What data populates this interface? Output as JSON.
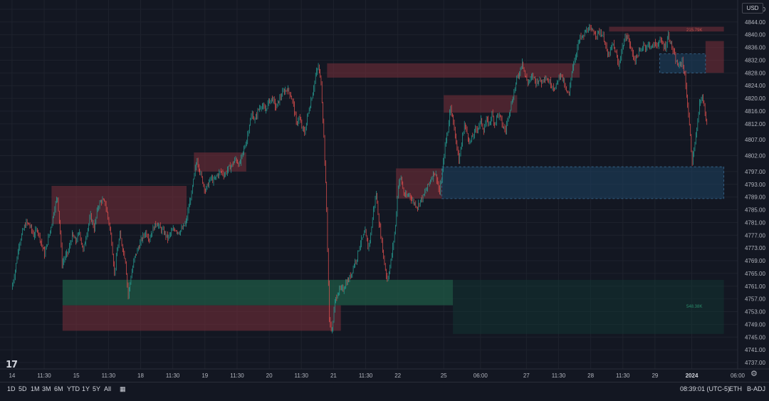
{
  "currency": "USD",
  "chart_data": {
    "type": "candlestick",
    "y_ticks": [
      4848.0,
      4844.0,
      4840.0,
      4836.0,
      4832.0,
      4828.0,
      4824.0,
      4820.0,
      4816.0,
      4812.0,
      4807.0,
      4802.0,
      4797.0,
      4793.0,
      4789.0,
      4785.0,
      4781.0,
      4777.0,
      4773.0,
      4769.0,
      4765.0,
      4761.0,
      4757.0,
      4753.0,
      4749.0,
      4745.0,
      4741.0,
      4737.0
    ],
    "y_tick_labels": [
      "4848.00",
      "4844.00",
      "4840.00",
      "4836.00",
      "4832.00",
      "4828.00",
      "4824.00",
      "4820.00",
      "4816.00",
      "4812.00",
      "4807.00",
      "4802.00",
      "4797.00",
      "4793.00",
      "4789.00",
      "4785.00",
      "4781.00",
      "4777.00",
      "4773.00",
      "4769.00",
      "4765.00",
      "4761.00",
      "4757.00",
      "4753.00",
      "4749.00",
      "4745.00",
      "4741.00",
      "4737.00"
    ],
    "ylim": [
      4735,
      4850
    ],
    "x_tick_labels": [
      "14",
      "11:30",
      "15",
      "11:30",
      "18",
      "11:30",
      "19",
      "11:30",
      "20",
      "11:30",
      "21",
      "11:30",
      "22",
      "25",
      "06:00",
      "27",
      "11:30",
      "28",
      "11:30",
      "29",
      "2024",
      "06:00"
    ],
    "x_tick_index": [
      0,
      35,
      70,
      105,
      140,
      175,
      210,
      245,
      280,
      315,
      350,
      385,
      420,
      470,
      510,
      560,
      595,
      630,
      665,
      700,
      740,
      790
    ],
    "x_index_range": [
      -10,
      790
    ],
    "bold_x_tick": "2024",
    "volume_labels": [
      {
        "text": "215.79K",
        "price": 4841.5,
        "color": "#c0544f"
      },
      {
        "text": "548.38K",
        "price": 4754.7,
        "color": "#2a8c6a"
      }
    ],
    "zones": [
      {
        "kind": "supply",
        "x0": 43,
        "x1": 190,
        "y0": 4780.5,
        "y1": 4792.5
      },
      {
        "kind": "supply",
        "x0": 198,
        "x1": 255,
        "y0": 4797.0,
        "y1": 4803.0
      },
      {
        "kind": "supply",
        "x0": 343,
        "x1": 618,
        "y0": 4826.5,
        "y1": 4831.0
      },
      {
        "kind": "supply",
        "x0": 470,
        "x1": 550,
        "y0": 4815.5,
        "y1": 4821.0
      },
      {
        "kind": "supply",
        "x0": 418,
        "x1": 468,
        "y0": 4788.5,
        "y1": 4798.0
      },
      {
        "kind": "supply",
        "x0": 650,
        "x1": 775,
        "y0": 4841.0,
        "y1": 4842.5
      },
      {
        "kind": "supply",
        "x0": 755,
        "x1": 775,
        "y0": 4828.0,
        "y1": 4838.0
      },
      {
        "kind": "supply",
        "x0": 55,
        "x1": 358,
        "y0": 4747.0,
        "y1": 4755.0
      },
      {
        "kind": "demand",
        "x0": 55,
        "x1": 480,
        "y0": 4755.0,
        "y1": 4763.0
      },
      {
        "kind": "demand_faded",
        "x0": 480,
        "x1": 775,
        "y0": 4746.0,
        "y1": 4763.0
      },
      {
        "kind": "info",
        "x0": 468,
        "x1": 775,
        "y0": 4788.5,
        "y1": 4798.5
      },
      {
        "kind": "info",
        "x0": 705,
        "x1": 755,
        "y0": 4828.0,
        "y1": 4834.0
      }
    ],
    "path": [
      [
        0,
        4760
      ],
      [
        4,
        4766
      ],
      [
        8,
        4774
      ],
      [
        12,
        4778
      ],
      [
        16,
        4781
      ],
      [
        20,
        4780
      ],
      [
        24,
        4777
      ],
      [
        28,
        4779
      ],
      [
        32,
        4775
      ],
      [
        36,
        4771
      ],
      [
        40,
        4776
      ],
      [
        44,
        4781
      ],
      [
        47,
        4786
      ],
      [
        50,
        4789
      ],
      [
        53,
        4778
      ],
      [
        55,
        4768
      ],
      [
        58,
        4770
      ],
      [
        62,
        4772
      ],
      [
        66,
        4777
      ],
      [
        70,
        4775
      ],
      [
        74,
        4778
      ],
      [
        78,
        4772
      ],
      [
        82,
        4778
      ],
      [
        86,
        4783
      ],
      [
        90,
        4779
      ],
      [
        94,
        4786
      ],
      [
        98,
        4788
      ],
      [
        102,
        4787
      ],
      [
        106,
        4781
      ],
      [
        109,
        4775
      ],
      [
        112,
        4765
      ],
      [
        115,
        4772
      ],
      [
        118,
        4777
      ],
      [
        121,
        4773
      ],
      [
        124,
        4769
      ],
      [
        127,
        4758
      ],
      [
        130,
        4764
      ],
      [
        134,
        4770
      ],
      [
        138,
        4773
      ],
      [
        142,
        4776
      ],
      [
        146,
        4778
      ],
      [
        150,
        4776
      ],
      [
        154,
        4779
      ],
      [
        158,
        4781
      ],
      [
        162,
        4779
      ],
      [
        166,
        4778
      ],
      [
        170,
        4776
      ],
      [
        174,
        4778
      ],
      [
        178,
        4779
      ],
      [
        182,
        4778
      ],
      [
        186,
        4779
      ],
      [
        190,
        4781
      ],
      [
        193,
        4786
      ],
      [
        196,
        4790
      ],
      [
        199,
        4796
      ],
      [
        202,
        4801
      ],
      [
        205,
        4797
      ],
      [
        208,
        4794
      ],
      [
        211,
        4791
      ],
      [
        214,
        4793
      ],
      [
        217,
        4795
      ],
      [
        220,
        4794
      ],
      [
        224,
        4796
      ],
      [
        228,
        4797
      ],
      [
        232,
        4796
      ],
      [
        236,
        4798
      ],
      [
        240,
        4799
      ],
      [
        244,
        4801
      ],
      [
        248,
        4799
      ],
      [
        252,
        4803
      ],
      [
        256,
        4807
      ],
      [
        259,
        4812
      ],
      [
        262,
        4815
      ],
      [
        265,
        4813
      ],
      [
        268,
        4816
      ],
      [
        272,
        4818
      ],
      [
        276,
        4816
      ],
      [
        280,
        4819
      ],
      [
        284,
        4820
      ],
      [
        288,
        4817
      ],
      [
        292,
        4820
      ],
      [
        296,
        4822
      ],
      [
        300,
        4823
      ],
      [
        304,
        4821
      ],
      [
        307,
        4818
      ],
      [
        310,
        4812
      ],
      [
        313,
        4814
      ],
      [
        316,
        4811
      ],
      [
        319,
        4809
      ],
      [
        322,
        4814
      ],
      [
        325,
        4818
      ],
      [
        328,
        4822
      ],
      [
        331,
        4827
      ],
      [
        334,
        4830
      ],
      [
        337,
        4825
      ],
      [
        340,
        4808
      ],
      [
        343,
        4785
      ],
      [
        346,
        4750
      ],
      [
        349,
        4747
      ],
      [
        352,
        4756
      ],
      [
        355,
        4759
      ],
      [
        358,
        4760
      ],
      [
        361,
        4760
      ],
      [
        364,
        4762
      ],
      [
        367,
        4763
      ],
      [
        370,
        4765
      ],
      [
        373,
        4768
      ],
      [
        376,
        4770
      ],
      [
        379,
        4774
      ],
      [
        382,
        4776
      ],
      [
        385,
        4778
      ],
      [
        388,
        4773
      ],
      [
        391,
        4777
      ],
      [
        394,
        4785
      ],
      [
        397,
        4790
      ],
      [
        400,
        4781
      ],
      [
        403,
        4775
      ],
      [
        406,
        4768
      ],
      [
        409,
        4763
      ],
      [
        412,
        4767
      ],
      [
        415,
        4773
      ],
      [
        418,
        4780
      ],
      [
        421,
        4793
      ],
      [
        424,
        4795
      ],
      [
        427,
        4790
      ],
      [
        430,
        4789
      ],
      [
        433,
        4790
      ],
      [
        436,
        4788
      ],
      [
        439,
        4787
      ],
      [
        442,
        4786
      ],
      [
        445,
        4788
      ],
      [
        448,
        4789
      ],
      [
        451,
        4791
      ],
      [
        454,
        4793
      ],
      [
        457,
        4795
      ],
      [
        460,
        4797
      ],
      [
        463,
        4795
      ],
      [
        466,
        4790
      ],
      [
        469,
        4797
      ],
      [
        472,
        4805
      ],
      [
        475,
        4810
      ],
      [
        478,
        4818
      ],
      [
        481,
        4812
      ],
      [
        484,
        4807
      ],
      [
        487,
        4800
      ],
      [
        490,
        4806
      ],
      [
        493,
        4812
      ],
      [
        496,
        4809
      ],
      [
        499,
        4806
      ],
      [
        502,
        4808
      ],
      [
        505,
        4810
      ],
      [
        508,
        4811
      ],
      [
        511,
        4813
      ],
      [
        514,
        4810
      ],
      [
        517,
        4813
      ],
      [
        520,
        4812
      ],
      [
        523,
        4815
      ],
      [
        526,
        4812
      ],
      [
        529,
        4815
      ],
      [
        532,
        4814
      ],
      [
        535,
        4811
      ],
      [
        538,
        4810
      ],
      [
        541,
        4815
      ],
      [
        544,
        4818
      ],
      [
        547,
        4822
      ],
      [
        550,
        4826
      ],
      [
        553,
        4828
      ],
      [
        556,
        4832
      ],
      [
        559,
        4827
      ],
      [
        562,
        4825
      ],
      [
        565,
        4826
      ],
      [
        568,
        4827
      ],
      [
        571,
        4825
      ],
      [
        574,
        4826
      ],
      [
        577,
        4825
      ],
      [
        580,
        4827
      ],
      [
        583,
        4826
      ],
      [
        586,
        4825
      ],
      [
        589,
        4824
      ],
      [
        592,
        4823
      ],
      [
        595,
        4826
      ],
      [
        598,
        4828
      ],
      [
        601,
        4825
      ],
      [
        604,
        4822
      ],
      [
        607,
        4821
      ],
      [
        610,
        4829
      ],
      [
        613,
        4832
      ],
      [
        616,
        4836
      ],
      [
        619,
        4839
      ],
      [
        622,
        4839
      ],
      [
        625,
        4841
      ],
      [
        628,
        4842
      ],
      [
        631,
        4841
      ],
      [
        634,
        4841
      ],
      [
        637,
        4840
      ],
      [
        640,
        4841
      ],
      [
        643,
        4840
      ],
      [
        646,
        4838
      ],
      [
        649,
        4833
      ],
      [
        652,
        4835
      ],
      [
        655,
        4837
      ],
      [
        658,
        4834
      ],
      [
        661,
        4830
      ],
      [
        664,
        4835
      ],
      [
        667,
        4838
      ],
      [
        670,
        4840
      ],
      [
        673,
        4837
      ],
      [
        676,
        4834
      ],
      [
        679,
        4832
      ],
      [
        682,
        4834
      ],
      [
        685,
        4835
      ],
      [
        688,
        4837
      ],
      [
        691,
        4836
      ],
      [
        694,
        4837
      ],
      [
        697,
        4836
      ],
      [
        700,
        4837
      ],
      [
        703,
        4837
      ],
      [
        706,
        4838
      ],
      [
        709,
        4837
      ],
      [
        712,
        4836
      ],
      [
        715,
        4840
      ],
      [
        718,
        4837
      ],
      [
        721,
        4834
      ],
      [
        724,
        4831
      ],
      [
        727,
        4830
      ],
      [
        730,
        4832
      ],
      [
        733,
        4827
      ],
      [
        736,
        4818
      ],
      [
        739,
        4808
      ],
      [
        741,
        4800
      ],
      [
        743,
        4804
      ],
      [
        746,
        4810
      ],
      [
        749,
        4818
      ],
      [
        752,
        4821
      ],
      [
        755,
        4815
      ],
      [
        757,
        4813
      ]
    ]
  },
  "footer": {
    "ranges": [
      "1D",
      "5D",
      "1M",
      "3M",
      "6M",
      "YTD",
      "1Y",
      "5Y",
      "All"
    ],
    "time": "08:39:01 (UTC-5)",
    "session": "ETH",
    "adjust": "B-ADJ"
  }
}
